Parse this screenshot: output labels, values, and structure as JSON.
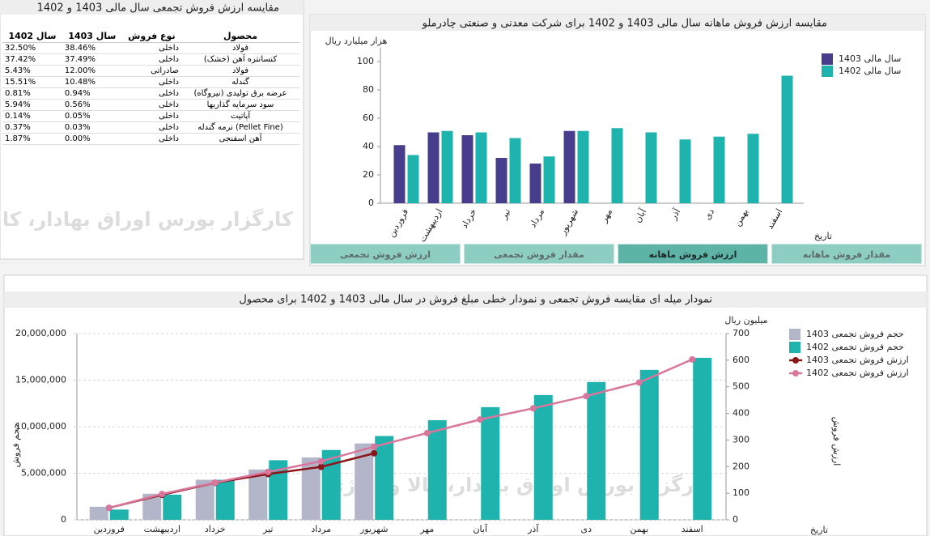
{
  "table_panel": {
    "title": "مقایسه ارزش فروش تجمعی سال مالی 1403 و 1402",
    "columns": [
      "محصول",
      "نوع فروش",
      "سال 1403",
      "سال 1402"
    ],
    "rows": [
      [
        "فولاد",
        "داخلی",
        "38.46%",
        "32.50%"
      ],
      [
        "کنسانتره آهن (خشک)",
        "داخلی",
        "37.49%",
        "37.42%"
      ],
      [
        "فولاد",
        "صادراتی",
        "12.00%",
        "5.43%"
      ],
      [
        "گندله",
        "داخلی",
        "10.48%",
        "15.51%"
      ],
      [
        "عرضه برق تولیدی (نیروگاه)",
        "داخلی",
        "0.94%",
        "0.81%"
      ],
      [
        "سود سرمایه گذاریها",
        "داخلی",
        "0.56%",
        "5.94%"
      ],
      [
        "آپاتیت",
        "داخلی",
        "0.05%",
        "0.14%"
      ],
      [
        "(Pellet Fine) نرمه گندله",
        "داخلی",
        "0.03%",
        "0.37%"
      ],
      [
        "آهن اسفنجی",
        "داخلی",
        "0.00%",
        "1.87%"
      ]
    ],
    "watermark": "کارگزار بورس اوراق بهادار، کالا و انرژی"
  },
  "tabs": [
    "ارزش فروش تجمعی",
    "مقدار فروش تجمعی",
    "ارزش فروش ماهانه",
    "مقدار فروش ماهانه"
  ],
  "chart_data": [
    {
      "type": "bar",
      "title": "مقایسه ارزش فروش ماهانه سال مالی 1403 و 1402 برای شرکت معدنی و صنعتی چادرملو",
      "y_label": "هزار میلیارد ریال",
      "x_label": "تاریخ",
      "categories": [
        "فروردین",
        "اردیبهشت",
        "خرداد",
        "تیر",
        "مرداد",
        "شهریور",
        "مهر",
        "آبان",
        "آذر",
        "دی",
        "بهمن",
        "اسفند"
      ],
      "series": [
        {
          "name": "سال مالی 1403",
          "color": "#463d8c",
          "values": [
            41,
            50,
            48,
            32,
            28,
            51,
            null,
            null,
            null,
            null,
            null,
            null
          ]
        },
        {
          "name": "سال مالی 1402",
          "color": "#1fb3ad",
          "values": [
            34,
            51,
            50,
            46,
            33,
            51,
            53,
            50,
            45,
            47,
            49,
            90
          ]
        }
      ],
      "ylim": [
        0,
        110
      ],
      "yticks": [
        0,
        20,
        40,
        60,
        80,
        100
      ],
      "grid": false
    },
    {
      "type": "combo",
      "title": "نمودار میله ای مقایسه فروش تجمعی و نمودار خطی مبلغ فروش در سال مالی 1403 و 1402 برای محصول",
      "y_label": "حجم فروش",
      "y2_label": "ارزش فروش",
      "y2_unit": "میلیون ریال",
      "x_label": "تاریخ",
      "categories": [
        "فروردین",
        "اردیبهشت",
        "خرداد",
        "تیر",
        "مرداد",
        "شهریور",
        "مهر",
        "آبان",
        "آذر",
        "دی",
        "بهمن",
        "اسفند"
      ],
      "series": [
        {
          "name": "حجم فروش تجمعی  1403",
          "kind": "bar",
          "color": "#b3b6c9",
          "values": [
            1400000,
            2800000,
            4300000,
            5400000,
            6700000,
            8200000,
            null,
            null,
            null,
            null,
            null,
            null
          ]
        },
        {
          "name": "حجم فروش تجمعی 1402",
          "kind": "bar",
          "color": "#1fb3ad",
          "values": [
            1100000,
            2700000,
            4300000,
            6400000,
            7500000,
            9000000,
            10700000,
            12100000,
            13400000,
            14800000,
            16100000,
            17400000
          ]
        },
        {
          "name": "ارزش فروش تجمعی 1403",
          "kind": "line",
          "axis": "y2",
          "color": "#8b1518",
          "values": [
            45,
            94,
            139,
            172,
            199,
            250,
            null,
            null,
            null,
            null,
            null,
            null
          ]
        },
        {
          "name": "ارزش فروش تجمعی 1402",
          "kind": "line",
          "axis": "y2",
          "color": "#d9769c",
          "values": [
            45,
            97,
            140,
            180,
            220,
            275,
            326,
            377,
            419,
            465,
            516,
            603
          ]
        }
      ],
      "ylim": [
        0,
        20000000
      ],
      "yticks": [
        0,
        {
          "value": 5000000,
          "label": "5,000,000"
        },
        {
          "value": 10000000,
          "label": "10,000,000"
        },
        {
          "value": 15000000,
          "label": "15,000,000"
        },
        {
          "value": 20000000,
          "label": "20,000,000"
        }
      ],
      "y2lim": [
        0,
        700
      ],
      "y2ticks": [
        0,
        100,
        200,
        300,
        400,
        500,
        600,
        700
      ],
      "grid": true
    }
  ]
}
